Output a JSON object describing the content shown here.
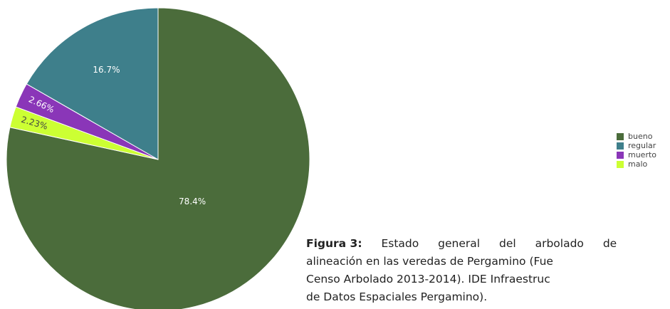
{
  "chart_data": {
    "type": "pie",
    "categories": [
      "bueno",
      "malo",
      "muerto",
      "regular"
    ],
    "values": [
      78.4,
      2.23,
      2.66,
      16.7
    ],
    "value_labels": [
      "78.4%",
      "2.23%",
      "2.66%",
      "16.7%"
    ],
    "colors": [
      "#4b6c3b",
      "#ccff33",
      "#8a36b8",
      "#3e7f8b"
    ],
    "label_colors": [
      "#ffffff",
      "#444444",
      "#ffffff",
      "#ffffff"
    ],
    "legend": {
      "order": [
        0,
        3,
        2,
        1
      ],
      "position": "right"
    }
  },
  "caption": {
    "label": "Figura 3:",
    "lines": [
      "Estado general del arbolado de",
      "alineación en las veredas de Pergamino (Fue",
      "Censo Arbolado 2013-2014). IDE Infraestruc",
      "de Datos Espaciales Pergamino)."
    ]
  }
}
